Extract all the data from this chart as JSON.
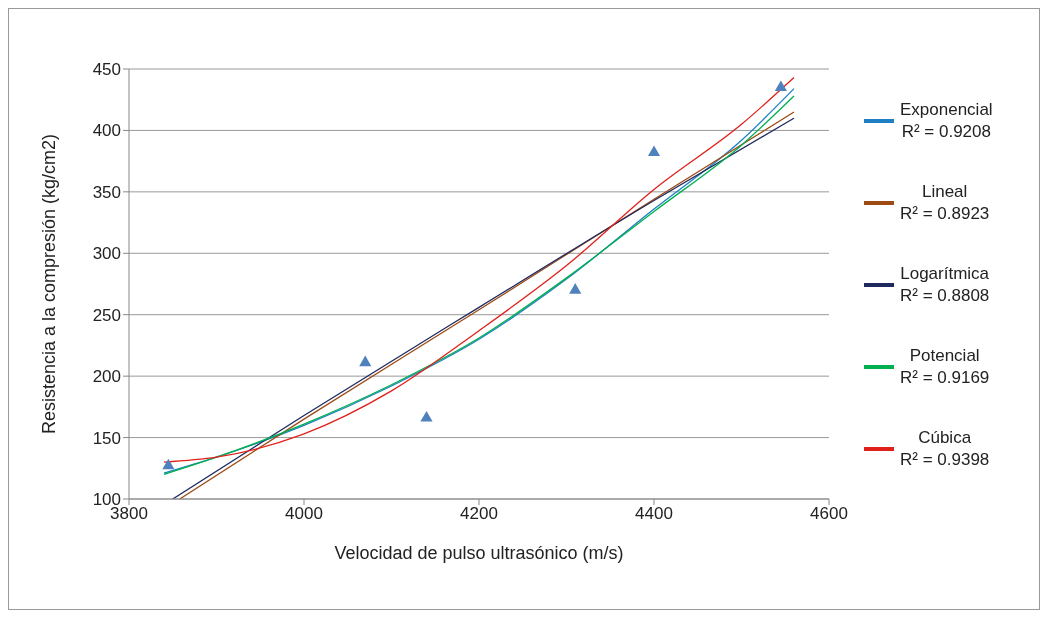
{
  "chart_data": {
    "type": "scatter",
    "xlabel": "Velocidad de pulso ultrasónico (m/s)",
    "ylabel": "Resistencia a la compresión (kg/cm2)",
    "xlim": [
      3800,
      4600
    ],
    "xticks": [
      3800,
      4000,
      4200,
      4400,
      4600
    ],
    "ylim": [
      100,
      450
    ],
    "yticks": [
      100,
      150,
      200,
      250,
      300,
      350,
      400,
      450
    ],
    "grid": "y",
    "legend": "right",
    "marker": "triangle",
    "series": [
      {
        "color": "#4f81bd",
        "x": [
          3845,
          4070,
          4140,
          4310,
          4400,
          4545
        ],
        "values": [
          127,
          211,
          166,
          270,
          382,
          435
        ]
      },
      {
        "type": "line",
        "marker": "none",
        "name": "Exponencial R² = 0.9208",
        "color": "#1f7fc4",
        "x": [
          3840,
          3900,
          4000,
          4100,
          4200,
          4300,
          4400,
          4500,
          4560
        ],
        "values": [
          121,
          134,
          160,
          192,
          230,
          279,
          336,
          392,
          434
        ]
      },
      {
        "type": "line",
        "marker": "none",
        "name": "Lineal R² = 0.8923",
        "color": "#9e4a14",
        "x": [
          3858,
          4000,
          4200,
          4400,
          4560
        ],
        "values": [
          100,
          165,
          254,
          344,
          415
        ]
      },
      {
        "type": "line",
        "marker": "none",
        "name": "Logarítmica R² = 0.8808",
        "color": "#1f2a5e",
        "x": [
          3850,
          4000,
          4200,
          4400,
          4560
        ],
        "values": [
          100,
          168,
          256,
          343,
          410
        ]
      },
      {
        "type": "line",
        "marker": "none",
        "name": "Potencial R² = 0.9169",
        "color": "#00b050",
        "x": [
          3840,
          3900,
          4000,
          4100,
          4200,
          4300,
          4400,
          4500,
          4560
        ],
        "values": [
          120,
          134,
          161,
          193,
          231,
          280,
          334,
          388,
          428
        ]
      },
      {
        "type": "line",
        "marker": "none",
        "name": "Cúbica R² = 0.9398",
        "color": "#e0201b",
        "x": [
          3840,
          3900,
          4000,
          4100,
          4200,
          4300,
          4400,
          4500,
          4560
        ],
        "values": [
          130,
          134,
          153,
          188,
          237,
          290,
          352,
          405,
          443
        ]
      }
    ]
  }
}
